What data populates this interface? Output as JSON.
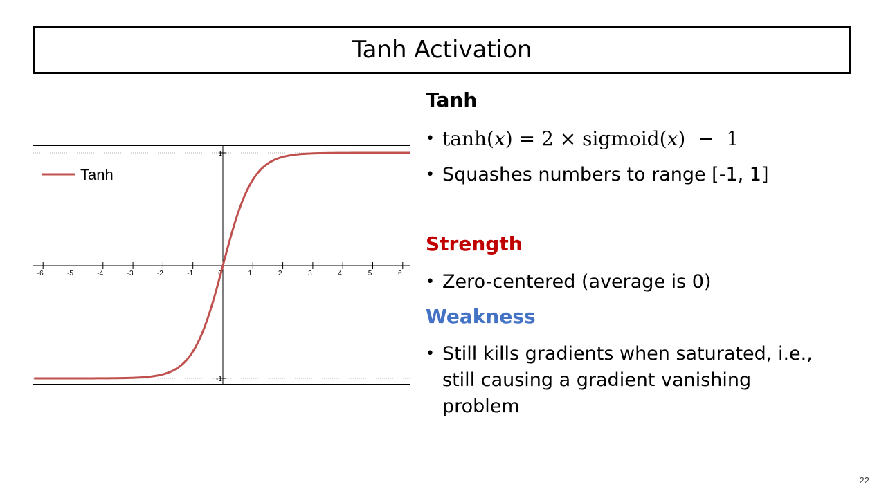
{
  "slide": {
    "title": "Tanh Activation",
    "page_number": "22"
  },
  "content": {
    "heading": "Tanh",
    "formula": {
      "lhs_fn": "tanh",
      "lhs_var": "x",
      "eq": "=",
      "coef": "2",
      "times": "×",
      "rhs_fn": "sigmoid",
      "rhs_var": "x",
      "minus": "−",
      "const": "1"
    },
    "bullet_range": "Squashes numbers to range [-1, 1]",
    "strength_heading": "Strength",
    "strength_bullet": "Zero-centered (average is 0)",
    "weakness_heading": "Weakness",
    "weakness_bullet": "Still kills gradients when saturated, i.e., still causing a gradient vanishing problem",
    "bullet_glyph": "•"
  },
  "colors": {
    "strength": "#c00000",
    "weakness": "#4472c4",
    "curve": "#c0504d"
  },
  "chart_data": {
    "type": "line",
    "function": "tanh",
    "series": [
      {
        "name": "Tanh",
        "x": [
          -6,
          -5,
          -4,
          -3,
          -2.5,
          -2,
          -1.5,
          -1,
          -0.5,
          0,
          0.5,
          1,
          1.5,
          2,
          2.5,
          3,
          4,
          5,
          6
        ],
        "y": [
          -1.0,
          -0.9999,
          -0.9993,
          -0.9951,
          -0.9866,
          -0.964,
          -0.9051,
          -0.7616,
          -0.4621,
          0,
          0.4621,
          0.7616,
          0.9051,
          0.964,
          0.9866,
          0.9951,
          0.9993,
          0.9999,
          1.0
        ]
      }
    ],
    "xlim": [
      -6.3,
      6.3
    ],
    "ylim": [
      -1.1,
      1.1
    ],
    "x_ticks": [
      "-6",
      "-5",
      "-4",
      "-3",
      "-2",
      "-1",
      "0",
      "1",
      "2",
      "3",
      "4",
      "5",
      "6"
    ],
    "y_ticks": [
      "1",
      "-1"
    ],
    "legend": {
      "entries": [
        "Tanh"
      ],
      "position": "top-left"
    },
    "grid": false
  }
}
